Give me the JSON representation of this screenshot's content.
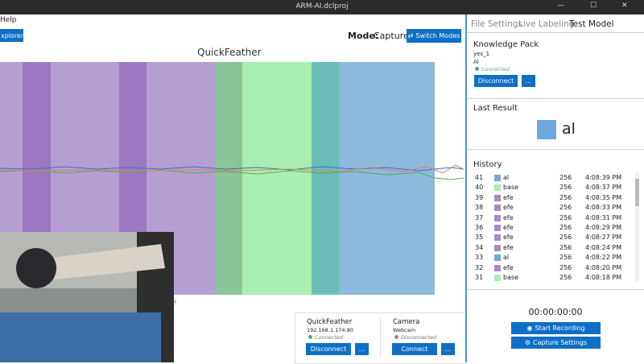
{
  "window": {
    "title": "ARM-AI.dclproj"
  },
  "menu": {
    "help": "Help"
  },
  "toolbar": {
    "explorer_button": "xplorer",
    "mode_label": "Mode:",
    "mode_value": "Capture",
    "switch_button": "Switch Modes"
  },
  "plot": {
    "title": "QuickFeather"
  },
  "devices": [
    {
      "name": "QuickFeather",
      "address": "192.168.1.174:80",
      "status": "Connected",
      "status_color": "#3cb371",
      "button": "Disconnect",
      "more": "..."
    },
    {
      "name": "Camera",
      "address": "Webcam",
      "status": "Disconnected",
      "status_color": "#888888",
      "button": "Connect",
      "more": "..."
    }
  ],
  "tabs": [
    "File Settings",
    "Live Labeling",
    "Test Model"
  ],
  "knowledge_pack": {
    "heading": "Knowledge Pack",
    "name": "yes_1",
    "type": "AI",
    "status": "Connected",
    "button": "Disconnect",
    "more": "..."
  },
  "last_result": {
    "heading": "Last Result",
    "label": "al",
    "color": "#6fa8dc"
  },
  "history": {
    "heading": "History",
    "rows": [
      {
        "id": 41,
        "label": "al",
        "color": "#6fa8dc",
        "samples": 256,
        "time": "4:08:39 PM"
      },
      {
        "id": 40,
        "label": "base",
        "color": "#a8eeb0",
        "samples": 256,
        "time": "4:08:37 PM"
      },
      {
        "id": 39,
        "label": "efe",
        "color": "#a78ac8",
        "samples": 256,
        "time": "4:08:35 PM"
      },
      {
        "id": 38,
        "label": "efe",
        "color": "#a78ac8",
        "samples": 256,
        "time": "4:08:33 PM"
      },
      {
        "id": 37,
        "label": "efe",
        "color": "#a78ac8",
        "samples": 256,
        "time": "4:08:31 PM"
      },
      {
        "id": 36,
        "label": "efe",
        "color": "#a78ac8",
        "samples": 256,
        "time": "4:08:29 PM"
      },
      {
        "id": 35,
        "label": "efe",
        "color": "#a78ac8",
        "samples": 256,
        "time": "4:08:27 PM"
      },
      {
        "id": 34,
        "label": "efe",
        "color": "#a78ac8",
        "samples": 256,
        "time": "4:08:24 PM"
      },
      {
        "id": 33,
        "label": "al",
        "color": "#6fa8dc",
        "samples": 256,
        "time": "4:08:22 PM"
      },
      {
        "id": 32,
        "label": "efe",
        "color": "#a78ac8",
        "samples": 256,
        "time": "4:08:20 PM"
      },
      {
        "id": 31,
        "label": "base",
        "color": "#a8eeb0",
        "samples": 256,
        "time": "4:08:18 PM"
      }
    ]
  },
  "recording": {
    "timer": "00:00:00:00",
    "start_button": "Start Recording",
    "settings_button": "Capture Settings"
  }
}
